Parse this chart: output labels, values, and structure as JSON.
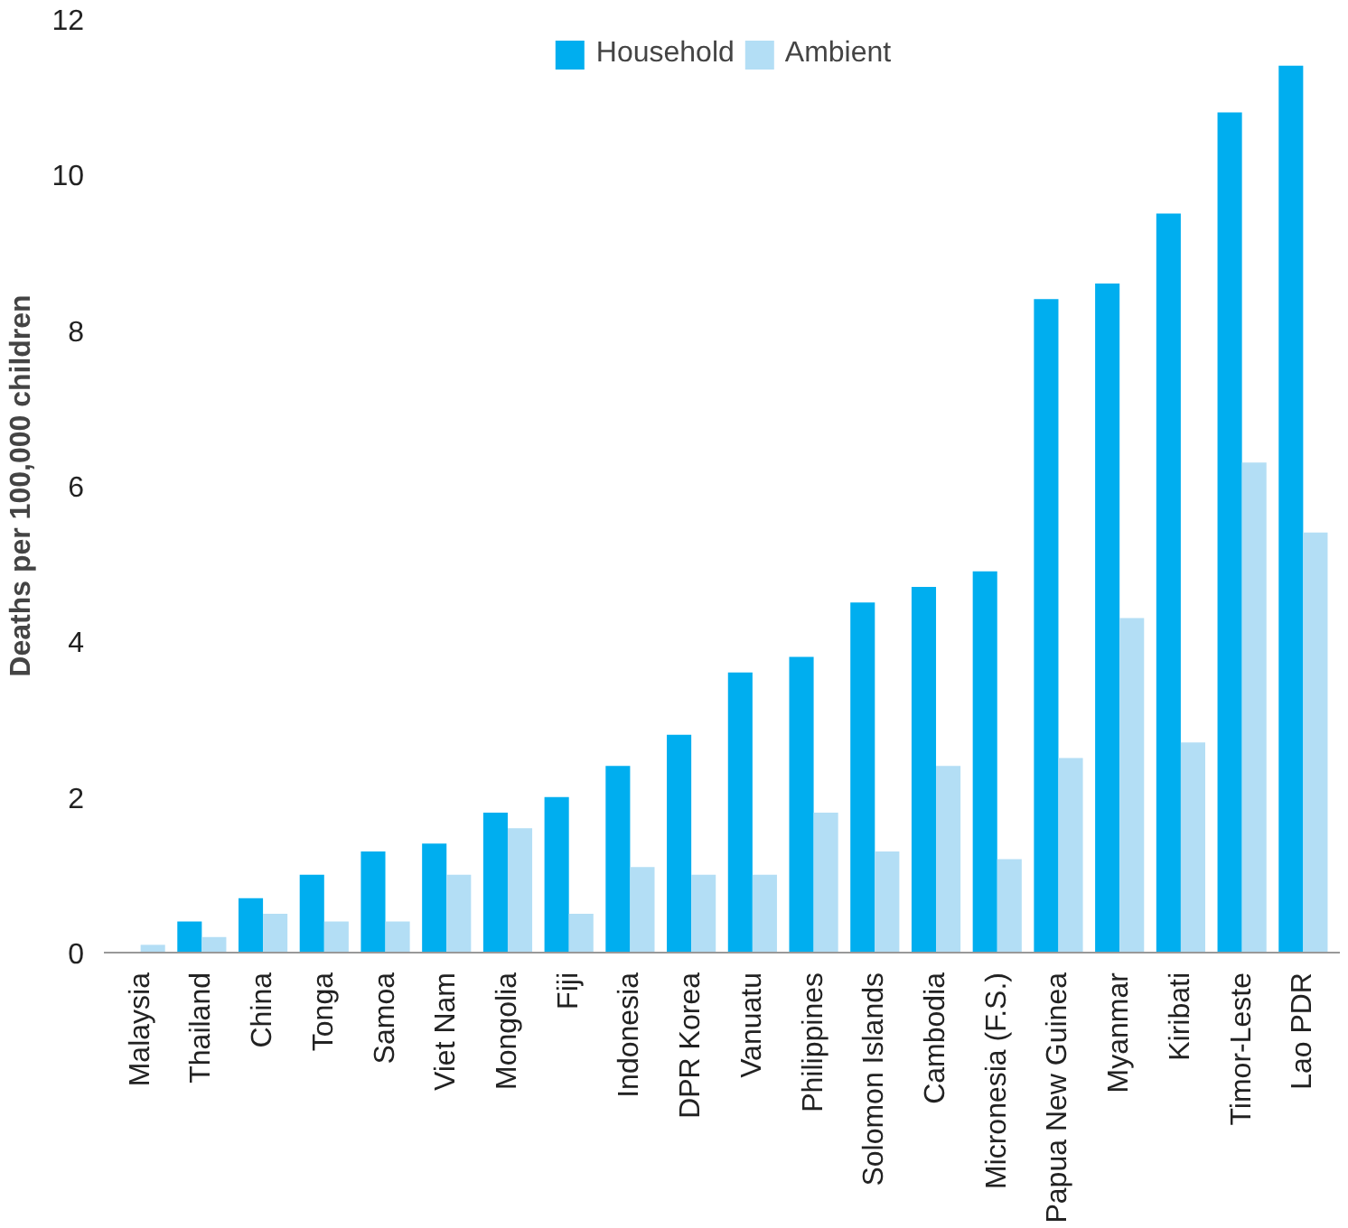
{
  "chart_data": {
    "type": "bar",
    "ylabel": "Deaths per 100,000 children",
    "categories": [
      "Malaysia",
      "Thailand",
      "China",
      "Tonga",
      "Samoa",
      "Viet Nam",
      "Mongolia",
      "Fiji",
      "Indonesia",
      "DPR Korea",
      "Vanuatu",
      "Philippines",
      "Solomon Islands",
      "Cambodia",
      "Micronesia (F.S.)",
      "Papua New Guinea",
      "Myanmar",
      "Kiribati",
      "Timor-Leste",
      "Lao PDR"
    ],
    "series": [
      {
        "name": "Household",
        "color": "#00aeef",
        "values": [
          0.0,
          0.4,
          0.7,
          1.0,
          1.3,
          1.4,
          1.8,
          2.0,
          2.4,
          2.8,
          3.6,
          3.8,
          4.5,
          4.7,
          4.9,
          8.4,
          8.6,
          9.5,
          10.8,
          11.4
        ]
      },
      {
        "name": "Ambient",
        "color": "#b3def5",
        "values": [
          0.1,
          0.2,
          0.5,
          0.4,
          0.4,
          1.0,
          1.6,
          0.5,
          1.1,
          1.0,
          1.0,
          1.8,
          1.3,
          2.4,
          1.2,
          2.5,
          4.3,
          2.7,
          6.3,
          5.4
        ]
      }
    ],
    "ylim": [
      0,
      12
    ],
    "yticks": [
      0,
      2,
      4,
      6,
      8,
      10,
      12
    ],
    "grid": false,
    "legend": "top"
  }
}
